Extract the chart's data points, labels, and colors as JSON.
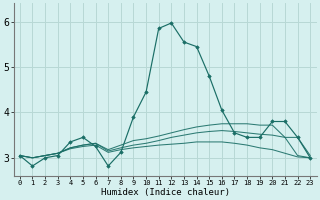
{
  "title": "",
  "xlabel": "Humidex (Indice chaleur)",
  "ylabel": "",
  "background_color": "#d6f0ef",
  "grid_color": "#b8d8d5",
  "line_color": "#1a6e66",
  "xlim": [
    -0.5,
    23.5
  ],
  "ylim": [
    2.6,
    6.4
  ],
  "yticks": [
    3,
    4,
    5,
    6
  ],
  "xtick_labels": [
    "0",
    "1",
    "2",
    "3",
    "4",
    "5",
    "6",
    "7",
    "8",
    "9",
    "10",
    "11",
    "12",
    "13",
    "14",
    "15",
    "16",
    "17",
    "18",
    "19",
    "20",
    "21",
    "22",
    "23"
  ],
  "series": [
    [
      3.05,
      2.82,
      3.0,
      3.05,
      3.35,
      3.45,
      3.25,
      2.82,
      3.12,
      3.9,
      4.45,
      5.85,
      5.97,
      5.55,
      5.45,
      4.8,
      4.05,
      3.55,
      3.45,
      3.45,
      3.8,
      3.8,
      3.45,
      3.0
    ],
    [
      3.05,
      3.0,
      3.05,
      3.1,
      3.22,
      3.28,
      3.32,
      3.18,
      3.28,
      3.38,
      3.42,
      3.48,
      3.55,
      3.62,
      3.68,
      3.72,
      3.75,
      3.75,
      3.75,
      3.72,
      3.72,
      3.45,
      3.45,
      3.05
    ],
    [
      3.05,
      3.0,
      3.05,
      3.1,
      3.22,
      3.28,
      3.32,
      3.15,
      3.22,
      3.28,
      3.32,
      3.38,
      3.45,
      3.5,
      3.55,
      3.58,
      3.6,
      3.58,
      3.55,
      3.52,
      3.5,
      3.45,
      3.05,
      3.0
    ],
    [
      3.05,
      3.0,
      3.05,
      3.1,
      3.2,
      3.25,
      3.28,
      3.12,
      3.18,
      3.22,
      3.25,
      3.28,
      3.3,
      3.32,
      3.35,
      3.35,
      3.35,
      3.32,
      3.28,
      3.22,
      3.18,
      3.1,
      3.02,
      3.0
    ]
  ]
}
